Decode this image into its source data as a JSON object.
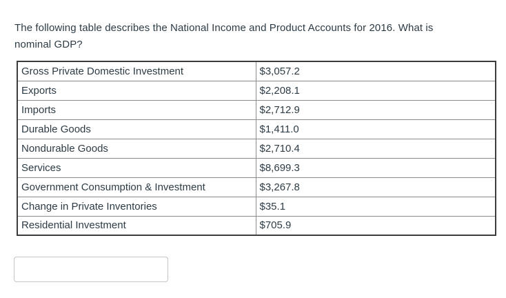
{
  "question": {
    "text": "The following table describes the National Income and Product Accounts for 2016. What is nominal GDP?"
  },
  "table": {
    "rows": [
      {
        "label": "Gross Private Domestic Investment",
        "value": "$3,057.2"
      },
      {
        "label": "Exports",
        "value": "$2,208.1"
      },
      {
        "label": "Imports",
        "value": "$2,712.9"
      },
      {
        "label": "Durable Goods",
        "value": "$1,411.0"
      },
      {
        "label": "Nondurable Goods",
        "value": "$2,710.4"
      },
      {
        "label": "Services",
        "value": "$8,699.3"
      },
      {
        "label": "Government Consumption & Investment",
        "value": "$3,267.8"
      },
      {
        "label": "Change in Private Inventories",
        "value": "$35.1"
      },
      {
        "label": "Residential Investment",
        "value": "$705.9"
      }
    ]
  },
  "answer_input": {
    "value": "",
    "placeholder": ""
  },
  "colors": {
    "background": "#ffffff",
    "text": "#2d3b45",
    "table_outer_border": "#3b3b3b",
    "table_inner_border": "#8a8a8a",
    "input_border": "#c5c5c5"
  }
}
